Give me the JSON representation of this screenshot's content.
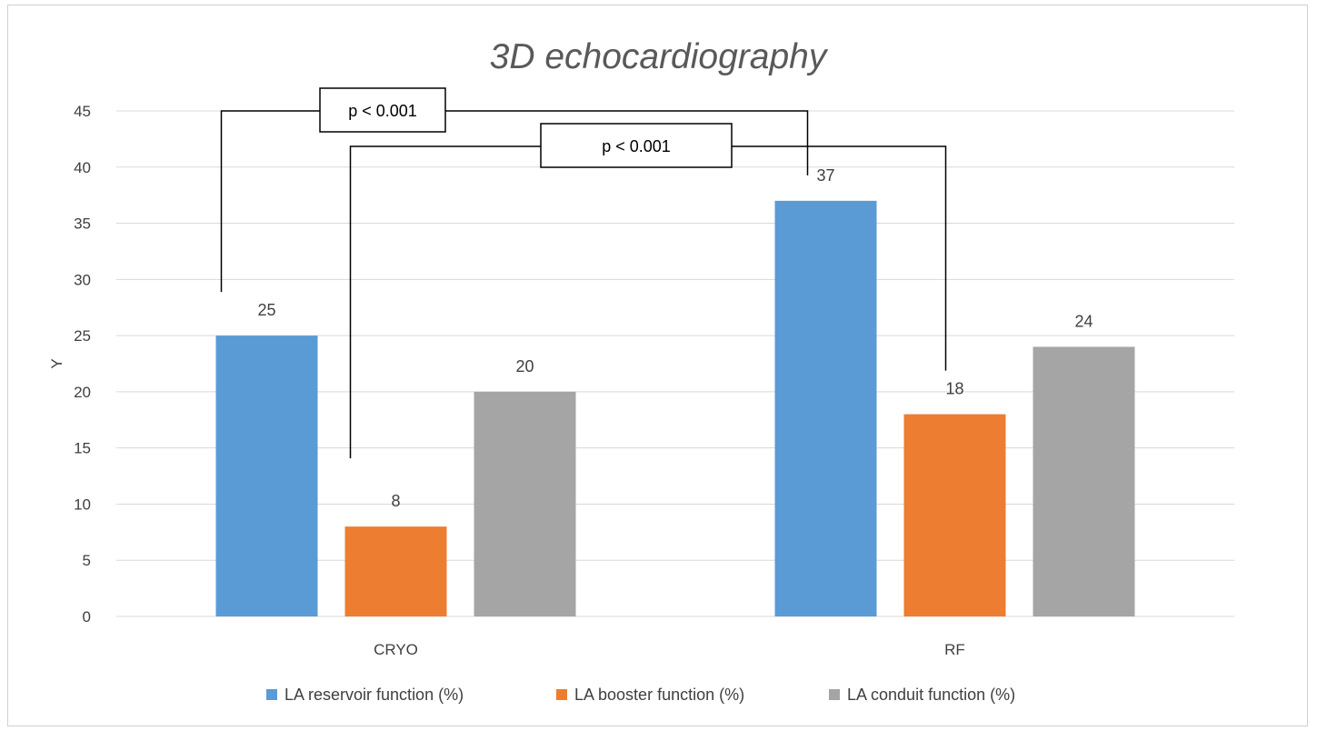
{
  "chart_data": {
    "type": "bar",
    "title": "3D echocardiography",
    "xlabel": "",
    "ylabel": "Y",
    "ylim": [
      0,
      45
    ],
    "y_ticks": [
      0,
      5,
      10,
      15,
      20,
      25,
      30,
      35,
      40,
      45
    ],
    "grid": true,
    "legend_position": "bottom",
    "categories": [
      "CRYO",
      "RF"
    ],
    "series": [
      {
        "name": "LA reservoir function (%)",
        "color": "#5B9BD5",
        "values": [
          25,
          37
        ]
      },
      {
        "name": "LA booster function (%)",
        "color": "#ED7D31",
        "values": [
          8,
          18
        ]
      },
      {
        "name": "LA conduit function (%)",
        "color": "#A5A5A5",
        "values": [
          20,
          24
        ]
      }
    ],
    "annotations": [
      {
        "text": "p < 0.001",
        "series": 0,
        "from_category": 0,
        "to_category": 1
      },
      {
        "text": "p < 0.001",
        "series": 1,
        "from_category": 0,
        "to_category": 1
      }
    ]
  }
}
